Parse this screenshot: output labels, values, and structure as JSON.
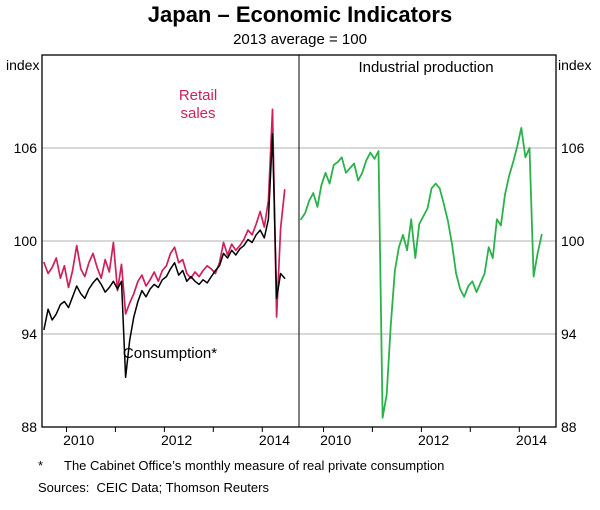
{
  "title": "Japan – Economic Indicators",
  "subtitle": "2013 average = 100",
  "axis": {
    "unit_left": "index",
    "unit_right": "index"
  },
  "annotations": {
    "retail": "Retail\nsales",
    "consumption": "Consumption*",
    "industrial": "Industrial production"
  },
  "footnote": {
    "marker": "*",
    "text": "The Cabinet Office’s monthly measure of real private consumption"
  },
  "sources": "Sources:  CEIC Data; Thomson Reuters",
  "colors": {
    "retail_sales": "#d0205a",
    "consumption": "#000000",
    "industrial_production": "#2bb24c",
    "gridline": "#b0b0b0"
  },
  "chart_data": [
    {
      "type": "line",
      "title": "",
      "x_note": "monthly, Jul 2009 - Jun 2014",
      "x_start": 2009.5417,
      "x_step": 0.0833333,
      "xlim": [
        2009.5,
        2014.75
      ],
      "ylim": [
        88,
        112
      ],
      "yticks": [
        88,
        94,
        100,
        106
      ],
      "xticks": [
        2010,
        2011,
        2012,
        2013,
        2014
      ],
      "xtick_labels": [
        {
          "label": "2010",
          "x": 2010.25
        },
        {
          "label": "2012",
          "x": 2012.25
        },
        {
          "label": "2014",
          "x": 2014.25
        }
      ],
      "grid": true,
      "series": [
        {
          "name": "Retail sales",
          "color": "#d0205a",
          "width": 1.7,
          "values": [
            98.6,
            97.9,
            98.3,
            98.9,
            97.6,
            98.4,
            97.0,
            98.1,
            99.7,
            98.2,
            97.7,
            98.6,
            99.2,
            98.3,
            97.6,
            98.8,
            98.0,
            99.9,
            96.8,
            98.5,
            95.3,
            96.0,
            96.6,
            97.4,
            97.8,
            97.1,
            97.5,
            98.0,
            97.4,
            98.1,
            98.4,
            99.2,
            99.6,
            98.6,
            98.8,
            97.9,
            97.6,
            98.0,
            97.7,
            98.1,
            98.4,
            98.2,
            97.9,
            98.6,
            99.9,
            99.1,
            99.8,
            99.4,
            99.7,
            100.1,
            100.7,
            100.4,
            101.1,
            101.9,
            100.9,
            102.6,
            108.5,
            95.1,
            100.8,
            103.3
          ]
        },
        {
          "name": "Consumption*",
          "color": "#000000",
          "width": 1.5,
          "values": [
            94.3,
            95.6,
            94.9,
            95.3,
            95.9,
            96.1,
            95.7,
            96.4,
            97.1,
            96.6,
            96.3,
            96.9,
            97.3,
            97.6,
            97.2,
            96.7,
            97.0,
            97.4,
            96.9,
            97.4,
            91.2,
            93.6,
            95.1,
            96.1,
            96.8,
            96.4,
            96.9,
            97.2,
            97.0,
            97.5,
            97.7,
            98.2,
            98.6,
            97.8,
            98.1,
            97.4,
            97.7,
            97.4,
            97.2,
            97.5,
            97.3,
            97.7,
            98.1,
            98.4,
            99.2,
            98.9,
            99.4,
            99.1,
            99.5,
            99.7,
            100.1,
            99.9,
            100.4,
            100.7,
            100.2,
            101.4,
            106.9,
            96.3,
            97.9,
            97.6
          ]
        }
      ]
    },
    {
      "type": "line",
      "title": "Industrial production",
      "x_note": "monthly, Jul 2009 - Jun 2014",
      "x_start": 2009.5417,
      "x_step": 0.0833333,
      "xlim": [
        2009.5,
        2014.75
      ],
      "ylim": [
        88,
        112
      ],
      "yticks": [
        88,
        94,
        100,
        106
      ],
      "xticks": [
        2010,
        2011,
        2012,
        2013,
        2014
      ],
      "xtick_labels": [
        {
          "label": "2010",
          "x": 2010.25
        },
        {
          "label": "2012",
          "x": 2012.25
        },
        {
          "label": "2014",
          "x": 2014.25
        }
      ],
      "grid": true,
      "series": [
        {
          "name": "Industrial production",
          "color": "#2bb24c",
          "width": 1.8,
          "values": [
            101.4,
            101.8,
            102.6,
            103.1,
            102.2,
            103.6,
            104.4,
            103.7,
            104.9,
            105.1,
            105.4,
            104.4,
            104.7,
            105.0,
            103.9,
            104.4,
            105.2,
            105.7,
            105.3,
            105.8,
            88.6,
            90.1,
            94.6,
            98.1,
            99.6,
            100.4,
            99.4,
            101.4,
            98.9,
            101.1,
            101.6,
            102.1,
            103.4,
            103.7,
            103.4,
            102.4,
            101.3,
            99.8,
            97.9,
            96.9,
            96.4,
            97.1,
            97.4,
            96.7,
            97.3,
            97.9,
            99.6,
            98.9,
            101.4,
            101.0,
            103.0,
            104.2,
            105.1,
            106.1,
            107.3,
            105.4,
            106.0,
            97.7,
            99.2,
            100.4
          ]
        }
      ]
    }
  ]
}
